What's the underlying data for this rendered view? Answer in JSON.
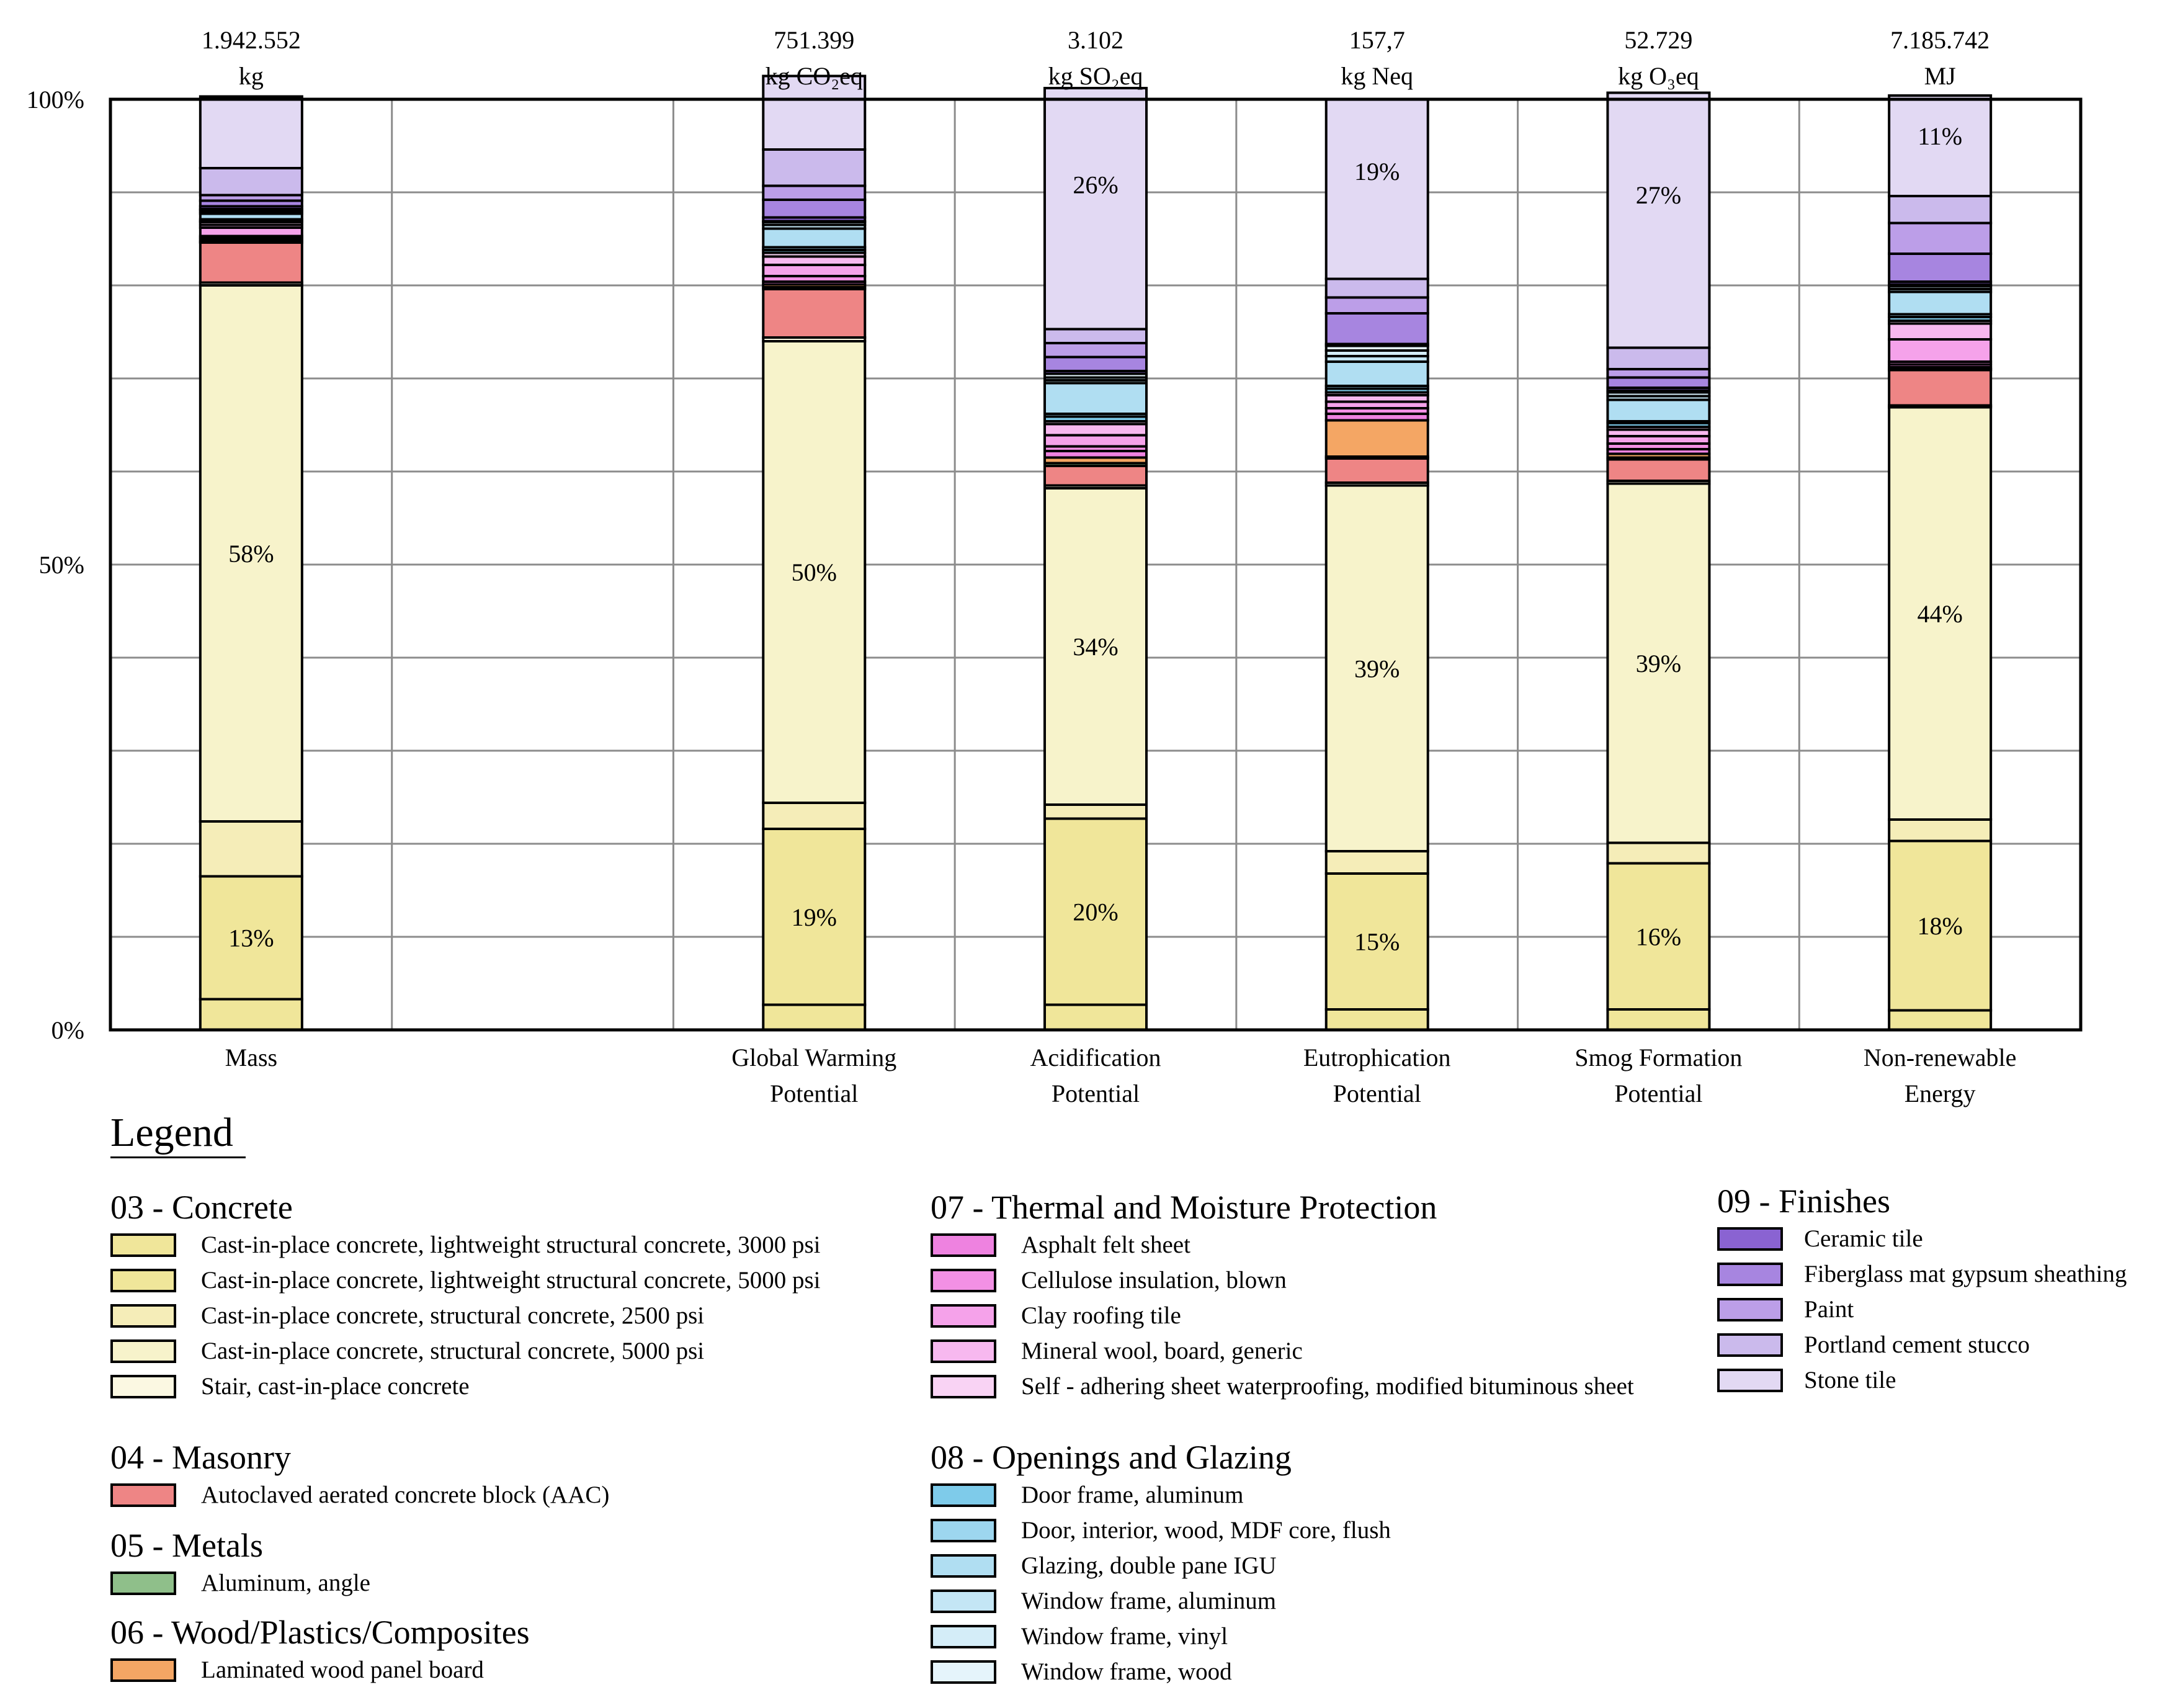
{
  "chart_data": {
    "type": "bar",
    "stacked": true,
    "normalized_percent": true,
    "ylim": [
      0,
      100
    ],
    "yticks": [
      0,
      10,
      20,
      30,
      40,
      50,
      60,
      70,
      80,
      90,
      100
    ],
    "ytick_labels": [
      {
        "value": 0,
        "label": "0%"
      },
      {
        "value": 50,
        "label": "50%"
      },
      {
        "value": 100,
        "label": "100%"
      }
    ],
    "grid": true,
    "categories": [
      {
        "key": "mass",
        "label": [
          "Mass"
        ],
        "total": "1.942.552",
        "unit": "kg",
        "slot": 0
      },
      {
        "key": "gwp",
        "label": [
          "Global Warming",
          "Potential"
        ],
        "total": "751.399",
        "unit": "kg CO₂eq",
        "slot": 2
      },
      {
        "key": "ap",
        "label": [
          "Acidification",
          "Potential"
        ],
        "total": "3.102",
        "unit": "kg SO₂eq",
        "slot": 3
      },
      {
        "key": "ep",
        "label": [
          "Eutrophication",
          "Potential"
        ],
        "total": "157,7",
        "unit": "kg Neq",
        "slot": 4
      },
      {
        "key": "sfp",
        "label": [
          "Smog Formation",
          "Potential"
        ],
        "total": "52.729",
        "unit": "kg O₃eq",
        "slot": 5
      },
      {
        "key": "nre",
        "label": [
          "Non-renewable",
          "Energy"
        ],
        "total": "7.185.742",
        "unit": "MJ",
        "slot": 6
      }
    ],
    "series": [
      {
        "name": "Cast-in-place concrete, lightweight structural concrete, 3000 psi",
        "color": "#f0e69a",
        "values": [
          3.3,
          2.7,
          2.7,
          2.2,
          2.2,
          2.1
        ]
      },
      {
        "name": "Cast-in-place concrete, lightweight structural concrete, 5000 psi",
        "color": "#f0e69a",
        "values": [
          13.2,
          18.9,
          20.0,
          14.6,
          15.7,
          18.2
        ]
      },
      {
        "name": "Cast-in-place concrete, structural concrete, 2500 psi",
        "color": "#f5edb8",
        "values": [
          5.9,
          2.8,
          1.5,
          2.4,
          2.2,
          2.3
        ]
      },
      {
        "name": "Cast-in-place concrete, structural concrete, 5000 psi",
        "color": "#f7f3cb",
        "values": [
          57.6,
          49.6,
          34.0,
          39.3,
          38.6,
          44.3
        ]
      },
      {
        "name": "Stair, cast-in-place concrete",
        "color": "#fbf8e2",
        "values": [
          0.3,
          0.4,
          0.3,
          0.3,
          0.3,
          0.2
        ]
      },
      {
        "name": "Autoclaved aerated concrete block (AAC)",
        "color": "#ee8585",
        "values": [
          4.3,
          5.2,
          2.1,
          2.6,
          2.3,
          3.8
        ]
      },
      {
        "name": "Aluminum, angle",
        "color": "#8fbf8a",
        "values": [
          0.1,
          0.2,
          0.3,
          0.2,
          0.2,
          0.1
        ]
      },
      {
        "name": "Laminated wood panel board",
        "color": "#f4a664",
        "values": [
          0.2,
          0.3,
          0.6,
          3.9,
          0.4,
          0.2
        ]
      },
      {
        "name": "Asphalt felt sheet",
        "color": "#ee82e0",
        "values": [
          0.2,
          0.3,
          0.7,
          0.7,
          0.5,
          0.3
        ]
      },
      {
        "name": "Cellulose insulation, blown",
        "color": "#f290e4",
        "values": [
          0.2,
          0.6,
          0.5,
          0.6,
          0.6,
          0.3
        ]
      },
      {
        "name": "Clay roofing tile",
        "color": "#f5a2ea",
        "values": [
          0.9,
          1.2,
          1.2,
          0.7,
          0.8,
          2.4
        ]
      },
      {
        "name": "Mineral wool, board, generic",
        "color": "#f7b8ef",
        "values": [
          0.3,
          0.9,
          1.2,
          0.7,
          0.7,
          1.7
        ]
      },
      {
        "name": "Self - adhering sheet waterproofing, modified bituminous sheet",
        "color": "#f9d3f4",
        "values": [
          0.3,
          0.4,
          0.3,
          0.3,
          0.3,
          0.3
        ]
      },
      {
        "name": "Door frame, aluminum",
        "color": "#7ecbea",
        "values": [
          0.1,
          0.3,
          0.5,
          0.4,
          0.4,
          0.4
        ]
      },
      {
        "name": "Door, interior, wood, MDF core, flush",
        "color": "#9dd6ef",
        "values": [
          0.2,
          0.3,
          0.3,
          0.3,
          0.2,
          0.3
        ]
      },
      {
        "name": "Glazing, double pane IGU",
        "color": "#b0def2",
        "values": [
          0.6,
          2.0,
          3.3,
          2.6,
          2.3,
          2.4
        ]
      },
      {
        "name": "Window frame, aluminum",
        "color": "#c4e6f5",
        "values": [
          0.2,
          0.4,
          0.3,
          0.6,
          0.4,
          0.3
        ]
      },
      {
        "name": "Window frame, vinyl",
        "color": "#d4edf8",
        "values": [
          0.2,
          0.3,
          0.3,
          0.6,
          0.4,
          0.3
        ]
      },
      {
        "name": "Window frame, wood",
        "color": "#e5f4fb",
        "values": [
          0.1,
          0.1,
          0.4,
          0.5,
          0.2,
          0.2
        ]
      },
      {
        "name": "Ceramic tile",
        "color": "#8a63d2",
        "values": [
          0.3,
          0.4,
          0.3,
          0.2,
          0.3,
          0.3
        ]
      },
      {
        "name": "Fiberglass mat gypsum sheathing",
        "color": "#a785e0",
        "values": [
          0.6,
          1.9,
          1.5,
          3.3,
          1.1,
          3.0
        ]
      },
      {
        "name": "Paint",
        "color": "#bc9ee8",
        "values": [
          0.6,
          1.5,
          1.5,
          1.7,
          0.9,
          3.3
        ]
      },
      {
        "name": "Portland cement stucco",
        "color": "#cbbaec",
        "values": [
          2.9,
          3.9,
          1.5,
          2.0,
          2.3,
          2.9
        ]
      },
      {
        "name": "Stone tile",
        "color": "#e2d9f3",
        "values": [
          7.7,
          7.9,
          25.9,
          19.3,
          27.4,
          10.8
        ]
      }
    ],
    "data_labels": [
      {
        "category": "mass",
        "series": 1,
        "text": "13%"
      },
      {
        "category": "mass",
        "series": 3,
        "text": "58%"
      },
      {
        "category": "gwp",
        "series": 1,
        "text": "19%"
      },
      {
        "category": "gwp",
        "series": 3,
        "text": "50%"
      },
      {
        "category": "ap",
        "series": 1,
        "text": "20%"
      },
      {
        "category": "ap",
        "series": 3,
        "text": "34%"
      },
      {
        "category": "ap",
        "series": 23,
        "text": "26%"
      },
      {
        "category": "ep",
        "series": 1,
        "text": "15%"
      },
      {
        "category": "ep",
        "series": 3,
        "text": "39%"
      },
      {
        "category": "ep",
        "series": 23,
        "text": "19%"
      },
      {
        "category": "sfp",
        "series": 1,
        "text": "16%"
      },
      {
        "category": "sfp",
        "series": 3,
        "text": "39%"
      },
      {
        "category": "sfp",
        "series": 23,
        "text": "27%"
      },
      {
        "category": "nre",
        "series": 1,
        "text": "18%"
      },
      {
        "category": "nre",
        "series": 3,
        "text": "44%"
      },
      {
        "category": "nre",
        "series": 23,
        "text": "11%"
      }
    ]
  },
  "legend": {
    "title": "Legend",
    "groups": [
      {
        "heading": "03 - Concrete",
        "items": [
          {
            "label": "Cast-in-place concrete, lightweight structural concrete, 3000 psi",
            "color": "#f0e69a"
          },
          {
            "label": "Cast-in-place concrete, lightweight structural concrete, 5000 psi",
            "color": "#f0e69a"
          },
          {
            "label": "Cast-in-place concrete, structural concrete, 2500 psi",
            "color": "#f5edb8"
          },
          {
            "label": "Cast-in-place concrete, structural concrete, 5000 psi",
            "color": "#f7f3cb"
          },
          {
            "label": "Stair, cast-in-place concrete",
            "color": "#fbf8e2"
          }
        ]
      },
      {
        "heading": "04 - Masonry",
        "items": [
          {
            "label": "Autoclaved aerated concrete block (AAC)",
            "color": "#ee8585"
          }
        ]
      },
      {
        "heading": "05 - Metals",
        "items": [
          {
            "label": "Aluminum, angle",
            "color": "#8fbf8a"
          }
        ]
      },
      {
        "heading": "06 - Wood/Plastics/Composites",
        "items": [
          {
            "label": "Laminated wood panel board",
            "color": "#f4a664"
          }
        ]
      },
      {
        "heading": "07 - Thermal and Moisture Protection",
        "items": [
          {
            "label": "Asphalt felt sheet",
            "color": "#ee82e0"
          },
          {
            "label": "Cellulose insulation, blown",
            "color": "#f290e4"
          },
          {
            "label": "Clay roofing tile",
            "color": "#f5a2ea"
          },
          {
            "label": "Mineral wool, board, generic",
            "color": "#f7b8ef"
          },
          {
            "label": "Self - adhering sheet waterproofing, modified bituminous sheet",
            "color": "#f9d3f4"
          }
        ]
      },
      {
        "heading": "08 - Openings and Glazing",
        "items": [
          {
            "label": "Door frame, aluminum",
            "color": "#7ecbea"
          },
          {
            "label": "Door, interior, wood, MDF core, flush",
            "color": "#9dd6ef"
          },
          {
            "label": "Glazing, double pane IGU",
            "color": "#b0def2"
          },
          {
            "label": "Window frame, aluminum",
            "color": "#c4e6f5"
          },
          {
            "label": "Window frame, vinyl",
            "color": "#d4edf8"
          },
          {
            "label": "Window frame, wood",
            "color": "#e5f4fb"
          }
        ]
      },
      {
        "heading": "09 - Finishes",
        "items": [
          {
            "label": "Ceramic tile",
            "color": "#8a63d2"
          },
          {
            "label": "Fiberglass mat gypsum sheathing",
            "color": "#a785e0"
          },
          {
            "label": "Paint",
            "color": "#bc9ee8"
          },
          {
            "label": "Portland cement stucco",
            "color": "#cbbaec"
          },
          {
            "label": "Stone tile",
            "color": "#e2d9f3"
          }
        ]
      }
    ]
  }
}
